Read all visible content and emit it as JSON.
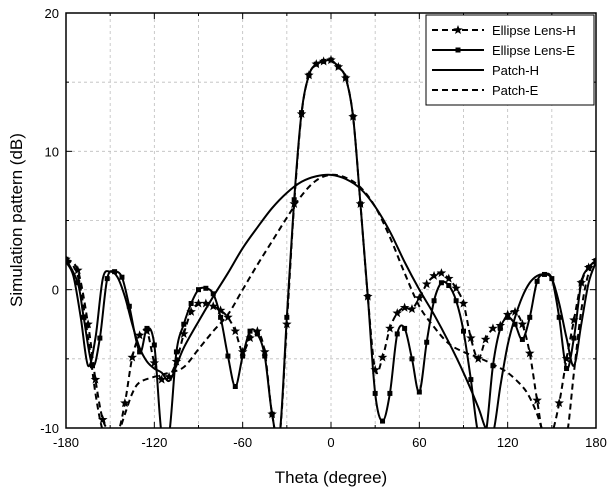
{
  "chart_data": {
    "type": "line",
    "title": "",
    "xlabel": "Theta (degree)",
    "ylabel": "Simulation  pattern (dB)",
    "xlim": [
      -180,
      180
    ],
    "ylim": [
      -10,
      20
    ],
    "xticks": [
      -180,
      -120,
      -60,
      0,
      60,
      120,
      180
    ],
    "yticks": [
      -10,
      0,
      10,
      20
    ],
    "grid": true,
    "legend_position": "top-right",
    "series": [
      {
        "name": "Ellipse Lens-H",
        "line_style": "dashed",
        "marker": "star",
        "color": "#000000",
        "x": [
          -180,
          -172,
          -165,
          -160,
          -155,
          -150,
          -145,
          -140,
          -135,
          -130,
          -125,
          -120,
          -115,
          -110,
          -105,
          -100,
          -95,
          -90,
          -85,
          -80,
          -75,
          -70,
          -65,
          -60,
          -55,
          -50,
          -45,
          -40,
          -35,
          -30,
          -25,
          -20,
          -15,
          -10,
          -5,
          0,
          5,
          10,
          15,
          20,
          25,
          30,
          35,
          40,
          45,
          50,
          55,
          60,
          65,
          70,
          75,
          80,
          85,
          90,
          95,
          100,
          105,
          110,
          115,
          120,
          125,
          130,
          135,
          140,
          145,
          150,
          155,
          160,
          165,
          170,
          175,
          180
        ],
        "y": [
          2.2,
          1.4,
          -2.5,
          -6.5,
          -9.4,
          -10.2,
          -10.4,
          -8.2,
          -4.9,
          -3.3,
          -3.0,
          -5.3,
          -6.5,
          -6.3,
          -5.2,
          -3.2,
          -1.6,
          -1.0,
          -1.0,
          -1.2,
          -1.5,
          -2.0,
          -3.0,
          -4.5,
          -3.5,
          -3.0,
          -4.5,
          -9.0,
          -10.6,
          -2.5,
          6.2,
          12.7,
          15.5,
          16.3,
          16.5,
          16.6,
          16.1,
          15.3,
          12.5,
          6.2,
          -0.5,
          -5.8,
          -4.9,
          -2.8,
          -1.7,
          -1.3,
          -1.4,
          -0.6,
          0.4,
          1.0,
          1.2,
          0.8,
          0.1,
          -1.0,
          -3.5,
          -5.0,
          -3.6,
          -2.8,
          -2.6,
          -1.8,
          -1.6,
          -2.5,
          -4.6,
          -8.0,
          -11.0,
          -10.4,
          -8.2,
          -5.0,
          -2.2,
          0.5,
          1.6,
          2.1
        ]
      },
      {
        "name": "Ellipse Lens-E",
        "line_style": "solid",
        "marker": "square",
        "color": "#000000",
        "x": [
          -180,
          -172,
          -168,
          -162,
          -157,
          -152,
          -147,
          -142,
          -137,
          -130,
          -125,
          -120,
          -115,
          -110,
          -105,
          -100,
          -95,
          -90,
          -85,
          -80,
          -75,
          -70,
          -65,
          -60,
          -55,
          -50,
          -45,
          -40,
          -35,
          -30,
          -25,
          -20,
          -15,
          -10,
          -5,
          0,
          5,
          10,
          15,
          20,
          25,
          30,
          35,
          40,
          45,
          50,
          55,
          60,
          65,
          70,
          75,
          80,
          85,
          90,
          95,
          100,
          105,
          110,
          115,
          120,
          125,
          130,
          135,
          140,
          145,
          150,
          155,
          160,
          165,
          170,
          175,
          180
        ],
        "y": [
          2.2,
          0.5,
          -2.0,
          -5.5,
          -3.5,
          0.8,
          1.3,
          0.9,
          -1.2,
          -4.5,
          -2.8,
          -4.0,
          -10.5,
          -10.5,
          -4.5,
          -2.5,
          -1.0,
          0.0,
          0.1,
          -0.3,
          -2.0,
          -4.8,
          -7.0,
          -4.8,
          -3.0,
          -3.2,
          -4.8,
          -9.0,
          -10.6,
          -2.0,
          6.5,
          12.8,
          15.5,
          16.3,
          16.5,
          16.6,
          16.1,
          15.3,
          12.5,
          6.2,
          -0.5,
          -7.5,
          -9.5,
          -7.5,
          -3.2,
          -2.8,
          -5.0,
          -7.4,
          -3.8,
          -0.8,
          0.5,
          0.3,
          -0.8,
          -3.0,
          -6.5,
          -10.4,
          -10.5,
          -5.5,
          -2.8,
          -2.0,
          -2.5,
          -3.6,
          -2.0,
          0.6,
          1.1,
          0.8,
          -2.0,
          -5.7,
          -3.5,
          0.5,
          1.6,
          2.1
        ]
      },
      {
        "name": "Patch-H",
        "line_style": "solid",
        "marker": "none",
        "color": "#000000",
        "x": [
          -180,
          -175,
          -170,
          -165,
          -160,
          -155,
          -150,
          -145,
          -140,
          -135,
          -130,
          -125,
          -120,
          -115,
          -110,
          -105,
          -100,
          -90,
          -80,
          -70,
          -60,
          -50,
          -40,
          -30,
          -20,
          -10,
          0,
          10,
          20,
          30,
          40,
          50,
          60,
          70,
          80,
          90,
          100,
          105,
          110,
          115,
          120,
          125,
          130,
          135,
          140,
          145,
          150,
          155,
          160,
          165,
          170,
          175,
          180
        ],
        "y": [
          2.0,
          1.0,
          -2.0,
          -5.5,
          -3.5,
          0.8,
          1.3,
          0.9,
          -0.5,
          -2.5,
          -4.2,
          -5.2,
          -5.7,
          -6.0,
          -6.6,
          -5.5,
          -4.2,
          -2.3,
          -0.5,
          1.2,
          3.0,
          4.5,
          5.9,
          7.0,
          7.8,
          8.2,
          8.3,
          8.0,
          7.3,
          6.0,
          4.2,
          2.0,
          0.0,
          -1.8,
          -3.8,
          -6.0,
          -8.5,
          -10.0,
          -10.4,
          -7.0,
          -4.0,
          -2.0,
          -0.5,
          0.5,
          1.0,
          1.1,
          0.8,
          -1.0,
          -3.5,
          -5.5,
          -2.5,
          0.5,
          2.0
        ]
      },
      {
        "name": "Patch-E",
        "line_style": "dashed",
        "marker": "none",
        "color": "#000000",
        "x": [
          -180,
          -172,
          -165,
          -160,
          -155,
          -150,
          -145,
          -140,
          -135,
          -130,
          -120,
          -110,
          -100,
          -90,
          -80,
          -70,
          -60,
          -50,
          -40,
          -30,
          -20,
          -10,
          0,
          10,
          20,
          30,
          40,
          50,
          60,
          70,
          80,
          90,
          100,
          110,
          120,
          130,
          135,
          140,
          145,
          150,
          155,
          160,
          165,
          170,
          175,
          180
        ],
        "y": [
          2.2,
          1.0,
          -3.5,
          -7.5,
          -10.2,
          -10.8,
          -10.5,
          -9.0,
          -7.5,
          -6.7,
          -6.3,
          -6.0,
          -5.6,
          -4.3,
          -3.0,
          -1.8,
          0.0,
          1.8,
          3.5,
          5.2,
          6.8,
          7.9,
          8.3,
          8.1,
          7.4,
          6.0,
          3.8,
          1.2,
          -1.2,
          -2.7,
          -3.9,
          -4.5,
          -4.9,
          -5.4,
          -6.0,
          -7.0,
          -7.8,
          -9.0,
          -10.5,
          -10.8,
          -10.5,
          -10.6,
          -6.0,
          -1.5,
          1.2,
          2.0
        ]
      }
    ]
  }
}
